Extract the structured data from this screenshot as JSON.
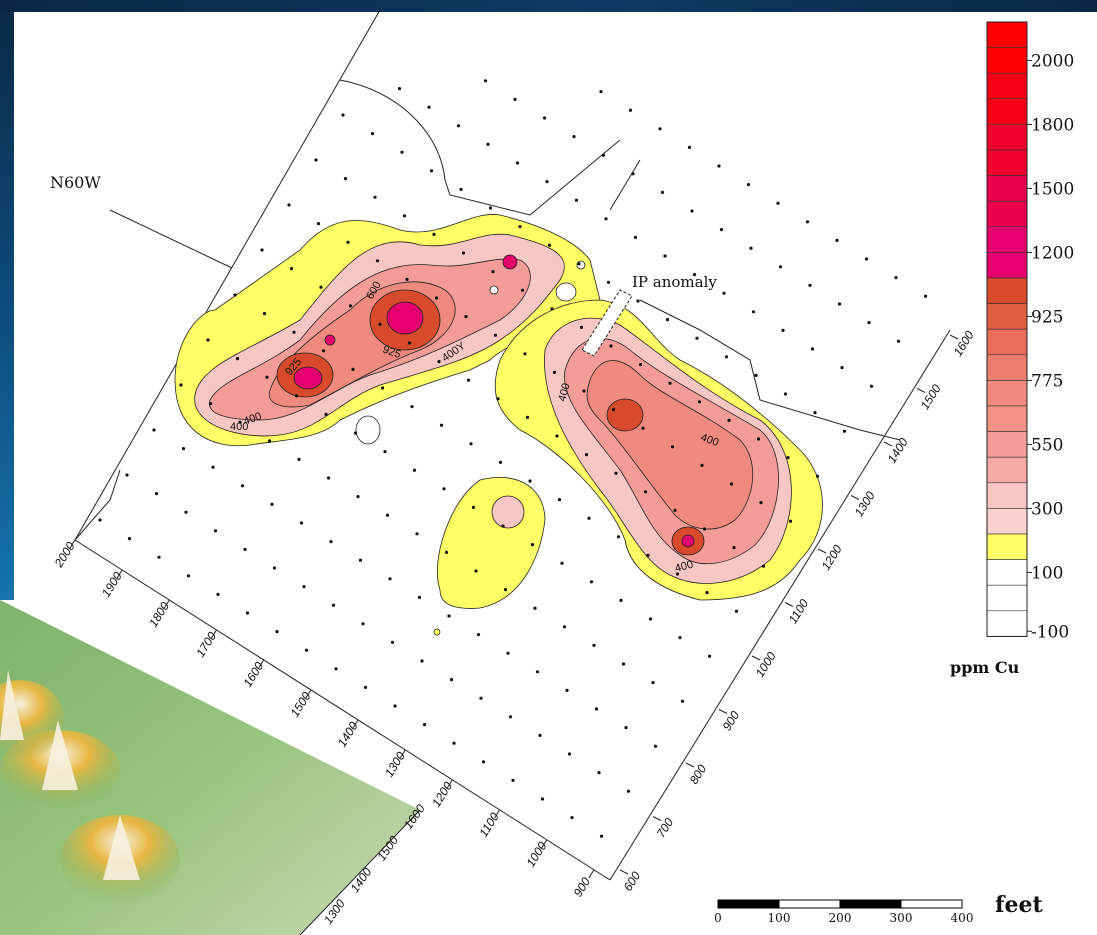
{
  "map": {
    "direction_label": "N60W",
    "ip_label": "IP anomaly",
    "contour_labels": [
      "600",
      "925",
      "925",
      "400Y",
      "400",
      "400",
      "400",
      "400",
      "400"
    ],
    "left_axis_ticks": [
      "2000",
      "1900",
      "1800",
      "1700",
      "1600",
      "1500",
      "1400",
      "1300",
      "1200",
      "1100",
      "1000",
      "900"
    ],
    "right_axis_ticks": [
      "600",
      "700",
      "800",
      "900",
      "1000",
      "1100",
      "1200",
      "1300",
      "1400",
      "1500",
      "1600"
    ]
  },
  "legend": {
    "labels": [
      "2000",
      "1800",
      "1500",
      "1200",
      "925",
      "775",
      "550",
      "300",
      "100",
      "-100"
    ],
    "unit": "ppm Cu",
    "colors": [
      "#ff0000",
      "#f2004a",
      "#e6006e",
      "#d74a2b",
      "#e86e5a",
      "#f08a7e",
      "#f49c98",
      "#f8c7c4",
      "#ffff66",
      "#ffffff"
    ]
  },
  "scale_bar": {
    "ticks": [
      "0",
      "100",
      "200",
      "300",
      "400"
    ],
    "unit": "feet"
  },
  "inset": {
    "ticks": [
      "1300",
      "1400",
      "1500",
      "1600"
    ]
  }
}
